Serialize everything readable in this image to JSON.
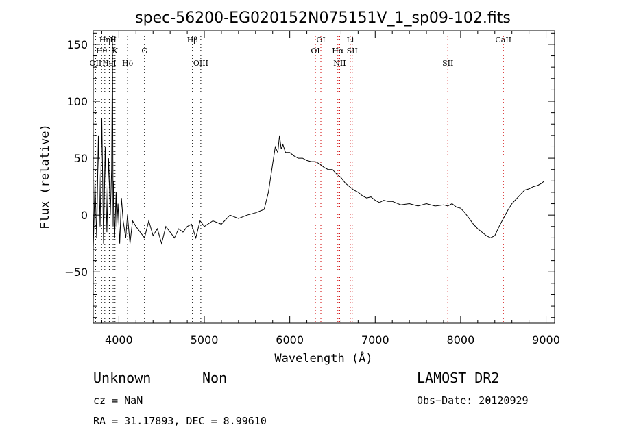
{
  "chart_data": {
    "type": "line",
    "title": "spec-56200-EG020152N075151V_1_sp09-102.fits",
    "xlabel": "Wavelength (Å)",
    "ylabel": "Flux (relative)",
    "xlim": [
      3700,
      9100
    ],
    "ylim": [
      -95,
      162
    ],
    "xticks": [
      4000,
      5000,
      6000,
      7000,
      8000,
      9000
    ],
    "yticks": [
      -50,
      0,
      50,
      100,
      150
    ],
    "ytick_labels": [
      "−50",
      "0",
      "50",
      "100",
      "150"
    ],
    "grid": false,
    "series": [
      {
        "x": [
          3700,
          3720,
          3740,
          3760,
          3780,
          3800,
          3820,
          3840,
          3860,
          3880,
          3900,
          3915,
          3925,
          3933,
          3940,
          3950,
          3968,
          3975,
          3990,
          4010,
          4030,
          4050,
          4080,
          4100,
          4130,
          4160,
          4200,
          4250,
          4300,
          4350,
          4400,
          4450,
          4500,
          4550,
          4600,
          4650,
          4700,
          4750,
          4800,
          4850,
          4900,
          4950,
          5000,
          5100,
          5200,
          5300,
          5400,
          5500,
          5600,
          5700,
          5750,
          5800,
          5830,
          5860,
          5880,
          5900,
          5920,
          5950,
          6000,
          6050,
          6100,
          6150,
          6200,
          6250,
          6300,
          6350,
          6400,
          6450,
          6500,
          6550,
          6600,
          6650,
          6700,
          6750,
          6800,
          6850,
          6900,
          6950,
          7000,
          7050,
          7100,
          7150,
          7200,
          7300,
          7400,
          7500,
          7600,
          7700,
          7800,
          7850,
          7900,
          7950,
          8000,
          8050,
          8100,
          8150,
          8200,
          8250,
          8300,
          8350,
          8400,
          8450,
          8500,
          8550,
          8600,
          8650,
          8700,
          8750,
          8800,
          8850,
          8900,
          8950,
          8980
        ],
        "y": [
          -30,
          30,
          -20,
          70,
          -10,
          85,
          -25,
          60,
          -15,
          50,
          0,
          40,
          158,
          -10,
          30,
          -20,
          20,
          -10,
          10,
          -25,
          15,
          -5,
          -20,
          0,
          -25,
          -5,
          -10,
          -15,
          -20,
          -5,
          -18,
          -12,
          -25,
          -10,
          -15,
          -20,
          -12,
          -15,
          -10,
          -8,
          -20,
          -5,
          -10,
          -5,
          -8,
          0,
          -3,
          0,
          2,
          5,
          20,
          45,
          60,
          55,
          70,
          58,
          62,
          55,
          55,
          52,
          50,
          50,
          48,
          47,
          47,
          45,
          42,
          40,
          40,
          36,
          33,
          28,
          25,
          22,
          20,
          17,
          15,
          16,
          13,
          11,
          13,
          12,
          12,
          9,
          10,
          8,
          10,
          8,
          9,
          8,
          10,
          7,
          6,
          2,
          -3,
          -8,
          -12,
          -15,
          -18,
          -20,
          -18,
          -10,
          -3,
          4,
          10,
          14,
          18,
          22,
          23,
          25,
          26,
          28,
          30
        ]
      }
    ],
    "line_labels": [
      {
        "label": "Hη",
        "x": 3835,
        "row": 1
      },
      {
        "label": "H",
        "x": 3933,
        "row": 1
      },
      {
        "label": "Hθ",
        "x": 3798,
        "row": 2
      },
      {
        "label": "K",
        "x": 3955,
        "row": 2
      },
      {
        "label": "G",
        "x": 4300,
        "row": 2
      },
      {
        "label": "OII",
        "x": 3727,
        "row": 3
      },
      {
        "label": "HeI",
        "x": 3888,
        "row": 3
      },
      {
        "label": "Hδ",
        "x": 4102,
        "row": 3
      },
      {
        "label": "Hβ",
        "x": 4861,
        "row": 1
      },
      {
        "label": "OIII",
        "x": 4959,
        "row": 3
      },
      {
        "label": "OI",
        "x": 6364,
        "row": 1
      },
      {
        "label": "OI",
        "x": 6300,
        "row": 2
      },
      {
        "label": "Hα",
        "x": 6563,
        "row": 2
      },
      {
        "label": "NII",
        "x": 6584,
        "row": 3
      },
      {
        "label": "Li",
        "x": 6708,
        "row": 1
      },
      {
        "label": "SII",
        "x": 6731,
        "row": 2
      },
      {
        "label": "SII",
        "x": 7850,
        "row": 3
      },
      {
        "label": "CaII",
        "x": 8500,
        "row": 1
      }
    ],
    "line_colors": {
      "default": "#000000",
      "red_lines": "#d00000"
    }
  },
  "info": {
    "class": "Unknown",
    "subclass": "Non",
    "cz": "cz = NaN",
    "radec": "RA =  31.17893, DEC =   8.99610",
    "survey": "LAMOST DR2",
    "obs_date": "Obs−Date: 20120929"
  }
}
